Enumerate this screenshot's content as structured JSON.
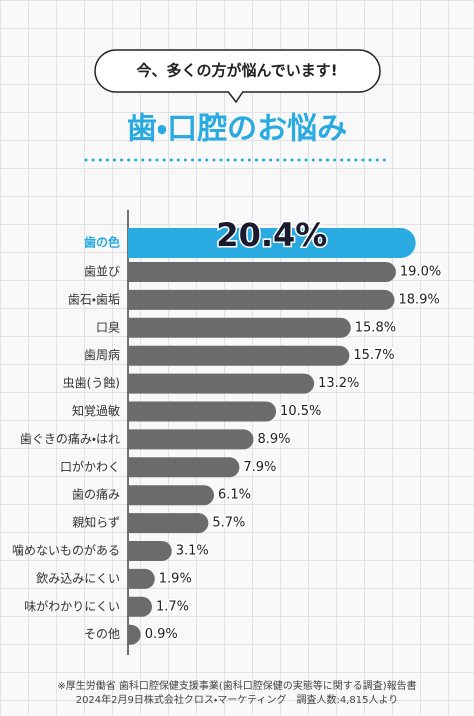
{
  "chart_data": {
    "type": "bar",
    "orientation": "horizontal",
    "subtitle": "今、多くの方が悩んでいます!",
    "title": "歯・口腔のお悩み",
    "categories": [
      "歯の色",
      "歯並び",
      "歯石・歯垢",
      "口臭",
      "歯周病",
      "虫歯(う蝕)",
      "知覚過敏",
      "歯ぐきの痛み・はれ",
      "口がかわく",
      "歯の痛み",
      "親知らず",
      "噛めないものがある",
      "飲み込みにくい",
      "味がわかりにくい",
      "その他"
    ],
    "values": [
      20.4,
      19.0,
      18.9,
      15.8,
      15.7,
      13.2,
      10.5,
      8.9,
      7.9,
      6.1,
      5.7,
      3.1,
      1.9,
      1.7,
      0.9
    ],
    "value_labels": [
      "20.4%",
      "19.0%",
      "18.9%",
      "15.8%",
      "15.7%",
      "13.2%",
      "10.5%",
      "8.9%",
      "7.9%",
      "6.1%",
      "5.7%",
      "3.1%",
      "1.9%",
      "1.7%",
      "0.9%"
    ],
    "color": "#6b6b6b",
    "highlight_color": "#29aae1",
    "highlight_index": 0,
    "footnote": [
      "※厚生労働省 歯科口腔保健支援事業(歯科口腔保健の実態等に関する調査)報告書",
      "2024年2月9日株式会社クロス・マーケティング　調査人数:4,815人より"
    ]
  }
}
